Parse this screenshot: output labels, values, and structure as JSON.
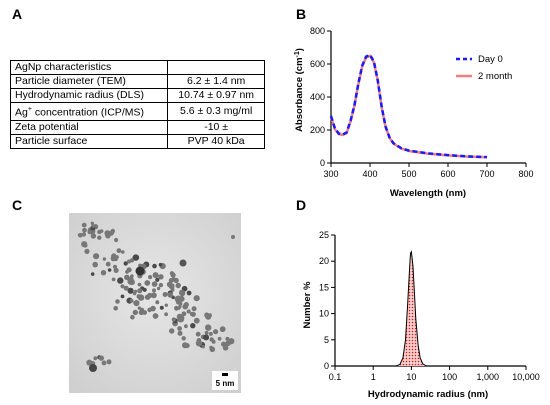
{
  "panels": {
    "a": "A",
    "b": "B",
    "c": "C",
    "d": "D"
  },
  "table": {
    "rows": [
      {
        "label": "AgNp characteristics",
        "value": ""
      },
      {
        "label": "Particle diameter (TEM)",
        "value": "6.2 ± 1.4 nm"
      },
      {
        "label": "Hydrodynamic radius (DLS)",
        "value": "10.74 ± 0.97 nm"
      },
      {
        "label_pre": "Ag",
        "label_sup": "+",
        "label_post": " concentration (ICP/MS)",
        "value": "5.6 ± 0.3 mg/ml"
      },
      {
        "label": "Zeta potential",
        "value": "-10 ±"
      },
      {
        "label": "Particle surface",
        "value": "PVP 40 kDa"
      }
    ]
  },
  "chart_data": [
    {
      "type": "line",
      "ylabel_main": "Absorbance (cm",
      "ylabel_sup": "-1",
      "ylabel_end": ")",
      "xlabel": "Wavelength (nm)",
      "xlim": [
        300,
        800
      ],
      "ylim": [
        0,
        800
      ],
      "xticks": [
        300,
        400,
        500,
        600,
        700,
        800
      ],
      "yticks": [
        0,
        200,
        400,
        600,
        800
      ],
      "legend_position": "top-right",
      "x": [
        300,
        310,
        320,
        330,
        340,
        350,
        360,
        370,
        380,
        390,
        400,
        410,
        420,
        430,
        440,
        450,
        460,
        480,
        500,
        550,
        600,
        650,
        700
      ],
      "series": [
        {
          "name": "Day 0",
          "color": "#1a1aff",
          "style": "dashed",
          "values": [
            285,
            210,
            178,
            172,
            185,
            255,
            350,
            480,
            590,
            645,
            655,
            615,
            500,
            340,
            220,
            155,
            120,
            90,
            75,
            58,
            48,
            40,
            36
          ]
        },
        {
          "name": "2 month",
          "color": "#f08080",
          "style": "solid",
          "values": [
            280,
            205,
            175,
            170,
            182,
            250,
            345,
            475,
            585,
            640,
            650,
            610,
            495,
            335,
            218,
            153,
            118,
            88,
            73,
            56,
            46,
            39,
            35
          ]
        }
      ]
    },
    {
      "type": "area",
      "ylabel": "Number %",
      "xlabel": "Hydrodynamic radius (nm)",
      "xscale": "log",
      "xlim": [
        0.1,
        10000
      ],
      "ylim": [
        0,
        25
      ],
      "xticks": [
        "0.1",
        "1",
        "10",
        "100",
        "1,000",
        "10,000"
      ],
      "yticks": [
        0,
        5,
        10,
        15,
        20,
        25
      ],
      "fill_color": "#e03030",
      "x": [
        0.1,
        4,
        5,
        6,
        7,
        8,
        9,
        9.5,
        10,
        11,
        12,
        13,
        15,
        17,
        20,
        25,
        10000
      ],
      "values": [
        0,
        0,
        0.3,
        1.5,
        5,
        12,
        19,
        21.5,
        21.8,
        19,
        14,
        9,
        4,
        1.5,
        0.4,
        0,
        0
      ]
    }
  ],
  "tem": {
    "scale_label": "5 nm"
  }
}
